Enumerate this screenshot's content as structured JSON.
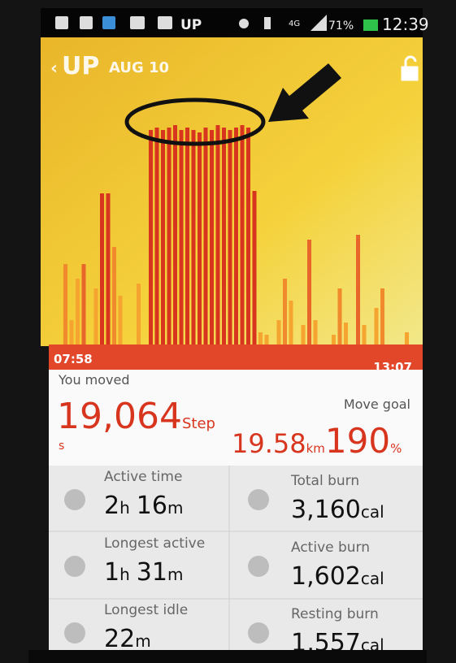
{
  "status_bar": {
    "app": "UP",
    "network": "4G",
    "battery": "71%",
    "time": "12:39"
  },
  "header": {
    "logo": "UP",
    "date": "AUG 10"
  },
  "activity_chart": {
    "values": [
      33,
      10,
      27,
      33,
      null,
      23,
      62,
      62,
      40,
      20,
      null,
      null,
      25,
      null,
      88,
      89,
      88,
      89,
      90,
      88,
      89,
      88,
      87,
      89,
      88,
      90,
      89,
      88,
      89,
      90,
      89,
      63,
      5,
      4,
      null,
      10,
      27,
      18,
      null,
      8,
      43,
      10,
      null,
      null,
      4,
      23,
      9,
      null,
      45,
      8,
      null,
      15,
      23,
      null,
      null,
      null,
      5,
      null
    ],
    "colors": [
      "#f08a2c",
      "#f5a52f",
      "#f5a52f",
      "#e9662a",
      null,
      "#f5a52f",
      "#d8351e",
      "#d8351e",
      "#f08a2c",
      "#f5a52f",
      null,
      null,
      "#f5a52f",
      null,
      "#d8351e",
      "#d8351e",
      "#d8351e",
      "#d8351e",
      "#d8351e",
      "#d8351e",
      "#d8351e",
      "#d8351e",
      "#d8351e",
      "#d8351e",
      "#d8351e",
      "#d8351e",
      "#d8351e",
      "#d8351e",
      "#d8351e",
      "#d8351e",
      "#d8351e",
      "#d8351e",
      "#f5a52f",
      "#f5a52f",
      null,
      "#f5a52f",
      "#f08a2c",
      "#f5a52f",
      null,
      "#f5a52f",
      "#e9662a",
      "#f5a52f",
      null,
      null,
      "#f5a52f",
      "#f08a2c",
      "#f5a52f",
      null,
      "#e9662a",
      "#f5a52f",
      null,
      "#f5a52f",
      "#f08a2c",
      null,
      null,
      null,
      "#f5a52f",
      null
    ],
    "start": "07:58",
    "end": "13:07"
  },
  "summary": {
    "label": "You moved",
    "steps": "19,064",
    "steps_unit": "Step",
    "steps_unit_wrap": "s",
    "goal_label": "Move goal",
    "distance": "19.58",
    "distance_unit": "km",
    "goal": "190",
    "goal_unit": "%"
  },
  "stats": [
    {
      "label": "Active time",
      "value": [
        {
          "n": "2",
          "u": "h"
        },
        {
          "n": "16",
          "u": "m"
        }
      ]
    },
    {
      "label": "Total burn",
      "value": [
        {
          "n": "3,160",
          "u": "cal"
        }
      ]
    },
    {
      "label": "Longest active",
      "value": [
        {
          "n": "1",
          "u": "h"
        },
        {
          "n": "31",
          "u": "m"
        }
      ]
    },
    {
      "label": "Active burn",
      "value": [
        {
          "n": "1,602",
          "u": "cal"
        }
      ]
    },
    {
      "label": "Longest idle",
      "value": [
        {
          "n": "22",
          "u": "m"
        }
      ]
    },
    {
      "label": "Resting burn",
      "value": [
        {
          "n": "1,557",
          "u": "cal"
        }
      ]
    }
  ]
}
